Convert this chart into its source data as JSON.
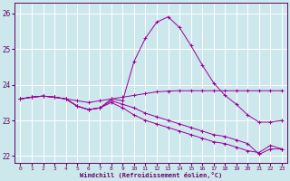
{
  "xlabel": "Windchill (Refroidissement éolien,°C)",
  "bg_color": "#cce8ec",
  "grid_color": "#ffffff",
  "line_color": "#990099",
  "xlim": [
    -0.5,
    23.5
  ],
  "ylim": [
    21.8,
    26.3
  ],
  "yticks": [
    22,
    23,
    24,
    25,
    26
  ],
  "xticks": [
    0,
    1,
    2,
    3,
    4,
    5,
    6,
    7,
    8,
    9,
    10,
    11,
    12,
    13,
    14,
    15,
    16,
    17,
    18,
    19,
    20,
    21,
    22,
    23
  ],
  "series1_x": [
    0,
    1,
    2,
    3,
    4,
    5,
    6,
    7,
    8,
    9,
    10,
    11,
    12,
    13,
    14,
    15,
    16,
    17,
    18,
    19,
    20,
    21,
    22,
    23
  ],
  "series1_y": [
    23.6,
    23.65,
    23.68,
    23.65,
    23.6,
    23.55,
    23.5,
    23.55,
    23.6,
    23.65,
    23.7,
    23.75,
    23.8,
    23.82,
    23.83,
    23.83,
    23.83,
    23.83,
    23.83,
    23.83,
    23.83,
    23.83,
    23.83,
    23.83
  ],
  "series2_x": [
    0,
    1,
    2,
    3,
    4,
    5,
    6,
    7,
    8,
    9,
    10,
    11,
    12,
    13,
    14,
    15,
    16,
    17,
    18,
    19,
    20,
    21,
    22,
    23
  ],
  "series2_y": [
    23.6,
    23.65,
    23.68,
    23.65,
    23.6,
    23.4,
    23.3,
    23.35,
    23.6,
    23.55,
    24.65,
    25.3,
    25.75,
    25.9,
    25.6,
    25.1,
    24.55,
    24.05,
    23.7,
    23.45,
    23.15,
    22.95,
    22.95,
    23.0
  ],
  "series3_x": [
    0,
    1,
    2,
    3,
    4,
    5,
    6,
    7,
    8,
    9,
    10,
    11,
    12,
    13,
    14,
    15,
    16,
    17,
    18,
    19,
    20,
    21,
    22,
    23
  ],
  "series3_y": [
    23.6,
    23.65,
    23.68,
    23.65,
    23.6,
    23.4,
    23.3,
    23.35,
    23.5,
    23.35,
    23.15,
    23.0,
    22.9,
    22.8,
    22.7,
    22.6,
    22.5,
    22.4,
    22.35,
    22.25,
    22.15,
    22.1,
    22.3,
    22.2
  ],
  "series4_x": [
    0,
    1,
    2,
    3,
    4,
    5,
    6,
    7,
    8,
    9,
    10,
    11,
    12,
    13,
    14,
    15,
    16,
    17,
    18,
    19,
    20,
    21,
    22,
    23
  ],
  "series4_y": [
    23.6,
    23.65,
    23.68,
    23.65,
    23.6,
    23.4,
    23.3,
    23.35,
    23.55,
    23.45,
    23.35,
    23.2,
    23.1,
    23.0,
    22.9,
    22.8,
    22.7,
    22.6,
    22.55,
    22.45,
    22.35,
    22.05,
    22.2,
    22.2
  ]
}
